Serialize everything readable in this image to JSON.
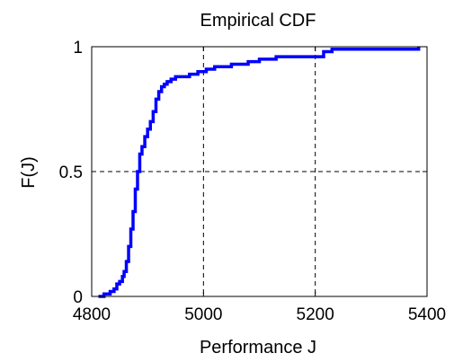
{
  "chart_data": {
    "type": "line",
    "title": "Empirical CDF",
    "xlabel": "Performance J",
    "ylabel": "F(J)",
    "xlim": [
      4800,
      5400
    ],
    "ylim": [
      0,
      1
    ],
    "x_ticks": [
      "4800",
      "5000",
      "5200",
      "5400"
    ],
    "y_ticks": [
      "0",
      "0.5",
      "1"
    ],
    "grid": true,
    "step": true,
    "line_color": "#0000ff",
    "series": [
      {
        "x": [
          4812,
          4822,
          4833,
          4840,
          4845,
          4850,
          4855,
          4858,
          4862,
          4866,
          4870,
          4874,
          4878,
          4882,
          4886,
          4890,
          4895,
          4900,
          4905,
          4910,
          4915,
          4920,
          4925,
          4930,
          4935,
          4942,
          4950,
          4960,
          4975,
          4990,
          5005,
          5020,
          5050,
          5080,
          5100,
          5130,
          5160,
          5190,
          5215,
          5230,
          5260,
          5300,
          5385
        ],
        "y": [
          0.0,
          0.01,
          0.02,
          0.03,
          0.05,
          0.06,
          0.08,
          0.1,
          0.14,
          0.2,
          0.27,
          0.34,
          0.43,
          0.5,
          0.57,
          0.6,
          0.64,
          0.67,
          0.7,
          0.74,
          0.79,
          0.82,
          0.84,
          0.85,
          0.86,
          0.87,
          0.88,
          0.88,
          0.89,
          0.9,
          0.91,
          0.92,
          0.93,
          0.94,
          0.95,
          0.96,
          0.96,
          0.96,
          0.98,
          0.99,
          0.99,
          0.99,
          1.0
        ]
      }
    ]
  }
}
